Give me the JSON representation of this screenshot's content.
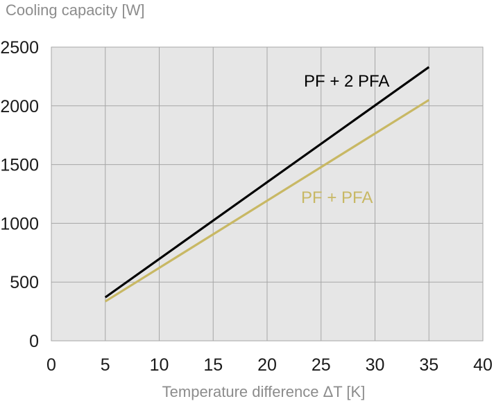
{
  "chart_data": {
    "type": "line",
    "ylabel": "Cooling capacity [W]",
    "xlabel": "Temperature difference ΔT [K]",
    "xlim": [
      0,
      40
    ],
    "ylim": [
      0,
      2500
    ],
    "x_ticks": [
      0,
      5,
      10,
      15,
      20,
      25,
      30,
      35,
      40
    ],
    "y_ticks": [
      0,
      500,
      1000,
      1500,
      2000,
      2500
    ],
    "grid": true,
    "series": [
      {
        "name": "PF + 2 PFA",
        "color": "#000000",
        "x": [
          5,
          35
        ],
        "y": [
          370,
          2330
        ]
      },
      {
        "name": "PF + PFA",
        "color": "#c8b864",
        "x": [
          5,
          35
        ],
        "y": [
          335,
          2050
        ]
      }
    ],
    "plot_background": "#e6e6e6",
    "grid_color": "#a6a6a6"
  }
}
